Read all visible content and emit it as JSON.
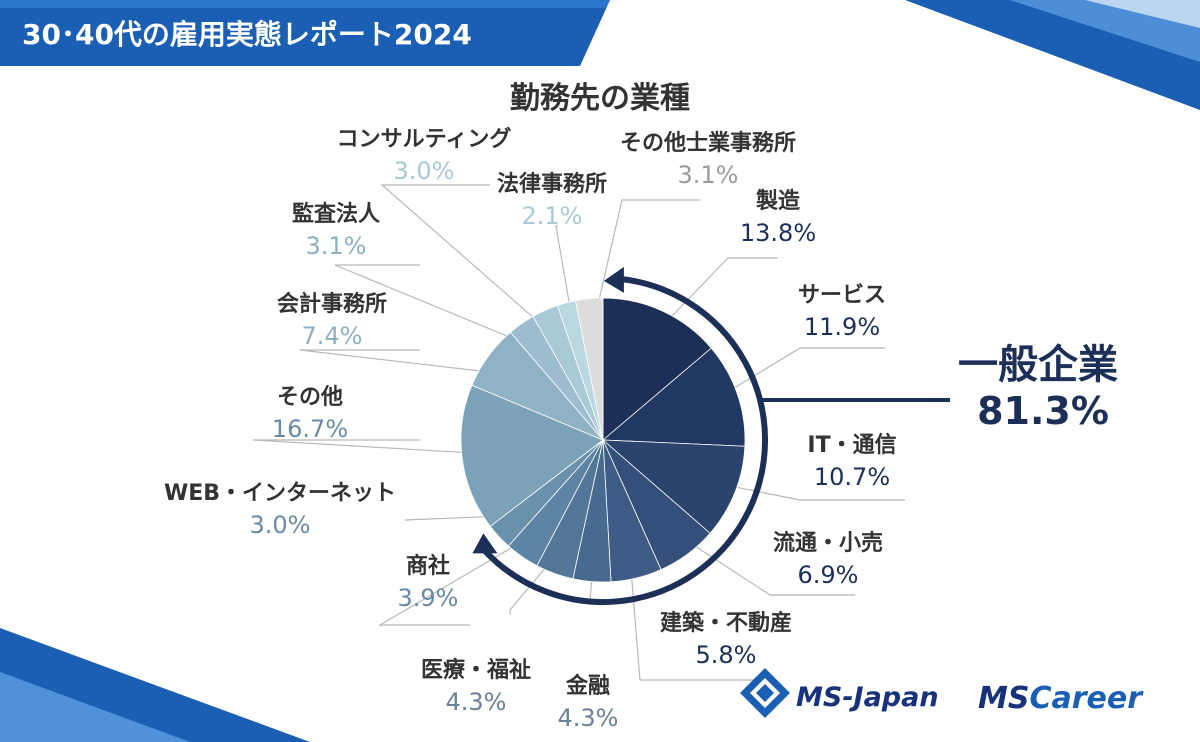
{
  "banner": {
    "title": "30･40代の雇用実態レポート2024"
  },
  "chart_data": {
    "type": "pie",
    "title": "勤務先の業種",
    "categories": [
      "製造",
      "サービス",
      "IT・通信",
      "流通・小売",
      "建築・不動産",
      "金融",
      "医療・福祉",
      "商社",
      "WEB・インターネット",
      "その他",
      "会計事務所",
      "監査法人",
      "コンサルティング",
      "法律事務所",
      "その他士業事務所"
    ],
    "values": [
      13.8,
      11.9,
      10.7,
      6.9,
      5.8,
      4.3,
      4.3,
      3.9,
      3.0,
      16.7,
      7.4,
      3.1,
      3.0,
      2.1,
      3.1
    ],
    "value_labels": [
      "13.8%",
      "11.9%",
      "10.7%",
      "6.9%",
      "5.8%",
      "4.3%",
      "4.3%",
      "3.9%",
      "3.0%",
      "16.7%",
      "7.4%",
      "3.1%",
      "3.0%",
      "2.1%",
      "3.1%"
    ],
    "colors": [
      "#1b2f57",
      "#213862",
      "#2b446d",
      "#34507a",
      "#3e5c85",
      "#476a8f",
      "#527799",
      "#5d84a3",
      "#6a91ac",
      "#7ba2b8",
      "#8fb2c4",
      "#9dbccd",
      "#aac9d6",
      "#b9d8e2",
      "#dcdcdc"
    ],
    "value_colors": [
      "#1b2f57",
      "#1b2f57",
      "#1b2f57",
      "#1b2f57",
      "#1b2f57",
      "#6b7f98",
      "#6b7f98",
      "#6b8aa6",
      "#6b8aa6",
      "#6b8aa6",
      "#8eafc2",
      "#8eafc2",
      "#a9c9d7",
      "#a9c9d7",
      "#9a9a9a"
    ],
    "aggregate": {
      "label": "一般企業",
      "value": "81.3%"
    }
  },
  "logos": {
    "ms_japan": "MS-Japan",
    "ms_career_prefix": "MS",
    "ms_career_suffix": "Career"
  }
}
